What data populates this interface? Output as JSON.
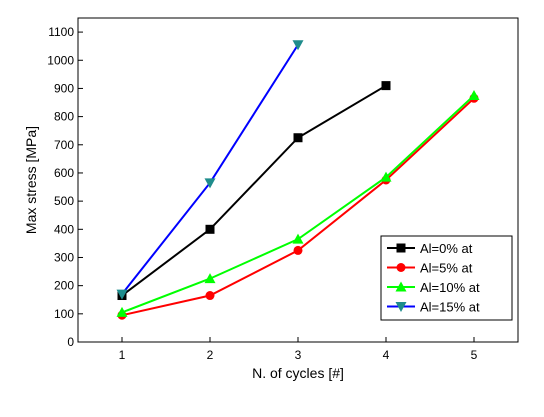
{
  "chart_data": {
    "type": "line",
    "xlabel": "N. of cycles [#]",
    "ylabel": "Max stress [MPa]",
    "xlim": [
      0.5,
      5.5
    ],
    "ylim": [
      0,
      1150
    ],
    "xticks": [
      1,
      2,
      3,
      4,
      5
    ],
    "yticks": [
      0,
      100,
      200,
      300,
      400,
      500,
      600,
      700,
      800,
      900,
      1000,
      1100
    ],
    "grid": false,
    "legend_position": "lower-right",
    "series": [
      {
        "name": "Al=0% at",
        "color": "#000000",
        "marker": "square",
        "x": [
          1,
          2,
          3,
          4
        ],
        "values": [
          165,
          400,
          725,
          910
        ]
      },
      {
        "name": "Al=5% at",
        "color": "#ff0000",
        "marker": "circle",
        "x": [
          1,
          2,
          3,
          4,
          5
        ],
        "values": [
          95,
          165,
          325,
          575,
          865
        ]
      },
      {
        "name": "Al=10% at",
        "color": "#00ff00",
        "marker": "triangle-up",
        "x": [
          1,
          2,
          3,
          4,
          5
        ],
        "values": [
          105,
          225,
          365,
          585,
          875
        ]
      },
      {
        "name": "Al=15% at",
        "color": "#0000ff",
        "marker": "triangle-down",
        "marker_color": "#1e8c8c",
        "x": [
          1,
          2,
          3
        ],
        "values": [
          170,
          565,
          1055
        ]
      }
    ]
  }
}
